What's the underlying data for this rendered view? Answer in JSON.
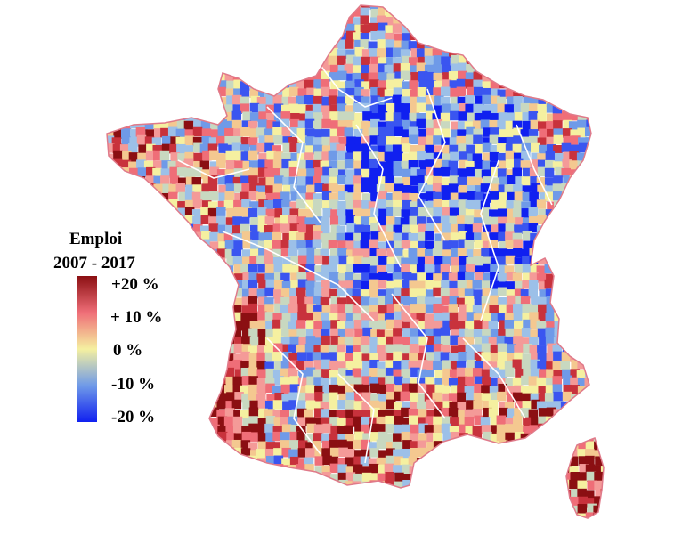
{
  "legend": {
    "title_line1": "Emploi",
    "title_line2": "2007 - 2017",
    "ticks": [
      "+20 %",
      "+ 10 %",
      "0 %",
      "-10 %",
      "-20 %"
    ],
    "scale_min": -20,
    "scale_max": 20,
    "colors": {
      "high": "#8b0f12",
      "mid_high": "#ef6e78",
      "zero": "#f5f0a0",
      "mid_low": "#6f9ae8",
      "low": "#1020f0"
    }
  },
  "map": {
    "region_shown": "France (mainland and Corsica), communes shaded by employment change",
    "border_color": "#e07a8a"
  }
}
